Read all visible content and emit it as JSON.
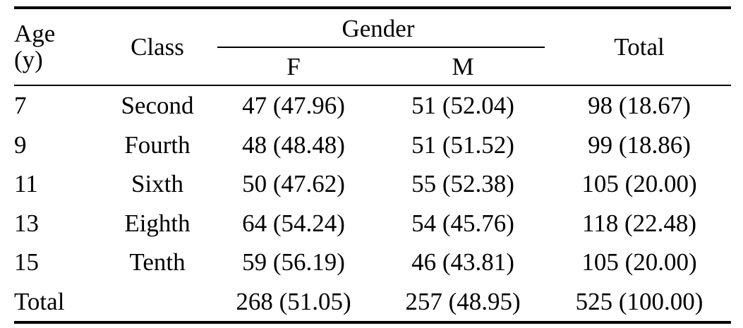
{
  "table": {
    "headers": {
      "age": "Age",
      "age_unit": "(y)",
      "class": "Class",
      "gender": "Gender",
      "female": "F",
      "male": "M",
      "total": "Total"
    },
    "rows": [
      {
        "age": "7",
        "class": "Second",
        "f": "47 (47.96)",
        "m": "51 (52.04)",
        "total": "98 (18.67)"
      },
      {
        "age": "9",
        "class": "Fourth",
        "f": "48 (48.48)",
        "m": "51 (51.52)",
        "total": "99 (18.86)"
      },
      {
        "age": "11",
        "class": "Sixth",
        "f": "50 (47.62)",
        "m": "55 (52.38)",
        "total": "105 (20.00)"
      },
      {
        "age": "13",
        "class": "Eighth",
        "f": "64 (54.24)",
        "m": "54 (45.76)",
        "total": "118 (22.48)"
      },
      {
        "age": "15",
        "class": "Tenth",
        "f": "59 (56.19)",
        "m": "46 (43.81)",
        "total": "105 (20.00)"
      }
    ],
    "total_row": {
      "label": "Total",
      "class": "",
      "f": "268 (51.05)",
      "m": "257 (48.95)",
      "total": "525 (100.00)"
    }
  }
}
